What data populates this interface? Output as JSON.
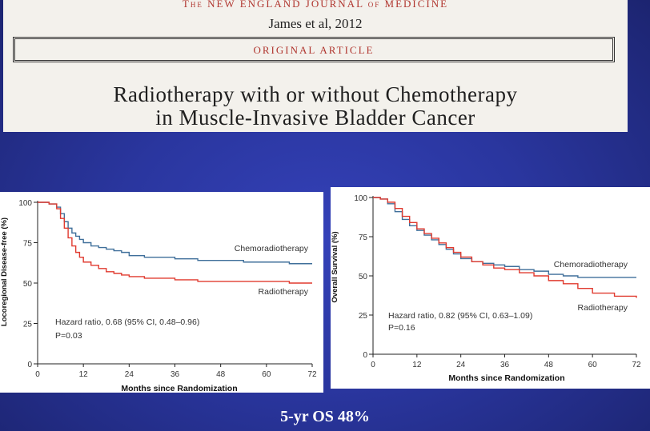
{
  "header": {
    "journal": "The NEW ENGLAND JOURNAL of MEDICINE",
    "citation": "James et al, 2012",
    "article_type": "ORIGINAL ARTICLE",
    "title_line1": "Radiotherapy with or without Chemotherapy",
    "title_line2": "in Muscle-Invasive Bladder Cancer"
  },
  "footer": {
    "text": "5-yr OS 48%"
  },
  "colors": {
    "chemoradiotherapy": "#3f6f9a",
    "radiotherapy": "#e03a2f",
    "background": "#27339a"
  },
  "chart_data": [
    {
      "type": "line",
      "ylabel": "Locoregional Disease-free (%)",
      "xlabel": "Months since Randomization",
      "xlim": [
        0,
        72
      ],
      "ylim": [
        0,
        100
      ],
      "xticks": [
        "0",
        "12",
        "24",
        "36",
        "48",
        "60",
        "72"
      ],
      "yticks": [
        "0",
        "25",
        "50",
        "75",
        "100"
      ],
      "annotation": "Hazard ratio, 0.68 (95% CI, 0.48–0.96)",
      "pvalue": "P=0.03",
      "series": [
        {
          "name": "Chemoradiotherapy",
          "x": [
            0,
            3,
            5,
            6,
            7,
            8,
            9,
            10,
            11,
            12,
            14,
            16,
            18,
            20,
            22,
            24,
            28,
            32,
            36,
            42,
            48,
            54,
            60,
            66,
            72
          ],
          "y": [
            100,
            99,
            97,
            93,
            88,
            84,
            81,
            79,
            77,
            75,
            73,
            72,
            71,
            70,
            69,
            67,
            66,
            66,
            65,
            64,
            64,
            63,
            63,
            62,
            62
          ]
        },
        {
          "name": "Radiotherapy",
          "x": [
            0,
            3,
            5,
            6,
            7,
            8,
            9,
            10,
            11,
            12,
            14,
            16,
            18,
            20,
            22,
            24,
            28,
            32,
            36,
            42,
            48,
            54,
            60,
            66,
            72
          ],
          "y": [
            100,
            99,
            96,
            90,
            84,
            78,
            73,
            69,
            66,
            63,
            61,
            59,
            57,
            56,
            55,
            54,
            53,
            53,
            52,
            51,
            51,
            51,
            51,
            50,
            50
          ]
        }
      ]
    },
    {
      "type": "line",
      "ylabel": "Overall Survival (%)",
      "xlabel": "Months since Randomization",
      "xlim": [
        0,
        72
      ],
      "ylim": [
        0,
        100
      ],
      "xticks": [
        "0",
        "12",
        "24",
        "36",
        "48",
        "60",
        "72"
      ],
      "yticks": [
        "0",
        "25",
        "50",
        "75",
        "100"
      ],
      "annotation": "Hazard ratio, 0.82 (95% CI, 0.63–1.09)",
      "pvalue": "P=0.16",
      "series": [
        {
          "name": "Chemoradiotherapy",
          "x": [
            0,
            2,
            4,
            6,
            8,
            10,
            12,
            14,
            16,
            18,
            20,
            22,
            24,
            27,
            30,
            33,
            36,
            40,
            44,
            48,
            52,
            56,
            60,
            66,
            72
          ],
          "y": [
            100,
            99,
            96,
            91,
            86,
            82,
            79,
            76,
            73,
            70,
            67,
            64,
            61,
            59,
            58,
            57,
            56,
            54,
            53,
            51,
            50,
            49,
            49,
            49,
            49
          ]
        },
        {
          "name": "Radiotherapy",
          "x": [
            0,
            2,
            4,
            6,
            8,
            10,
            12,
            14,
            16,
            18,
            20,
            22,
            24,
            27,
            30,
            33,
            36,
            40,
            44,
            48,
            52,
            56,
            60,
            66,
            72
          ],
          "y": [
            100,
            99,
            97,
            93,
            88,
            84,
            80,
            77,
            74,
            71,
            68,
            65,
            62,
            59,
            57,
            55,
            54,
            52,
            50,
            47,
            45,
            42,
            39,
            37,
            36
          ]
        }
      ]
    }
  ]
}
